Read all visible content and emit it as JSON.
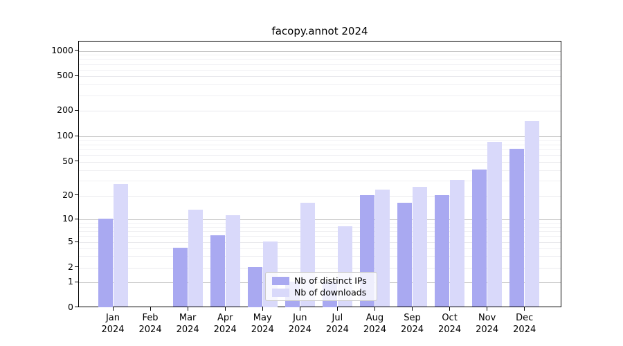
{
  "title": "facopy.annot 2024",
  "chart_data": {
    "type": "bar",
    "title": "facopy.annot 2024",
    "categories": [
      "Jan",
      "Feb",
      "Mar",
      "Apr",
      "May",
      "Jun",
      "Jul",
      "Aug",
      "Sep",
      "Oct",
      "Nov",
      "Dec"
    ],
    "category_year": "2024",
    "series": [
      {
        "name": "Nb of distinct IPs",
        "color": "#a9a9f1",
        "values": [
          10,
          0,
          4,
          6,
          2,
          1,
          1,
          20,
          16,
          20,
          40,
          70
        ]
      },
      {
        "name": "Nb of downloads",
        "color": "#d9d9fa",
        "values": [
          27,
          0,
          13,
          11,
          5,
          16,
          8,
          23,
          25,
          30,
          85,
          150
        ]
      }
    ],
    "yscale": "log",
    "yticks": [
      0,
      1,
      2,
      5,
      10,
      20,
      50,
      100,
      200,
      500,
      1000
    ],
    "ylim": [
      0,
      1300
    ],
    "grid": true,
    "legend_position": "lower center"
  }
}
